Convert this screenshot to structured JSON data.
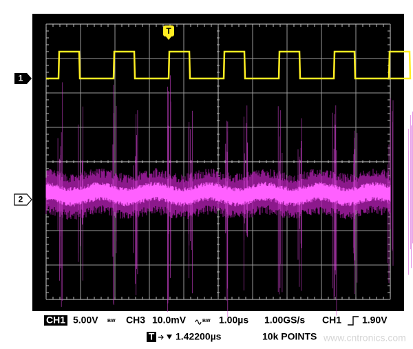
{
  "screen": {
    "trigger_marker": "T",
    "channel1_marker": "1",
    "channel2_marker": "2"
  },
  "status": {
    "channel1": {
      "label": "CH1",
      "scale": "5.00V",
      "bandwidth": "BW"
    },
    "channel3": {
      "label": "CH3",
      "scale": "10.0mV",
      "bandwidth": "BW"
    },
    "timebase": "1.00µs",
    "sample_rate": "1.00GS/s",
    "trigger": {
      "source": "CH1",
      "level": "1.90V",
      "marker": "T",
      "position": "1.42200µs"
    },
    "record_length": "10k POINTS"
  },
  "watermark": "www.cntronics.com"
}
